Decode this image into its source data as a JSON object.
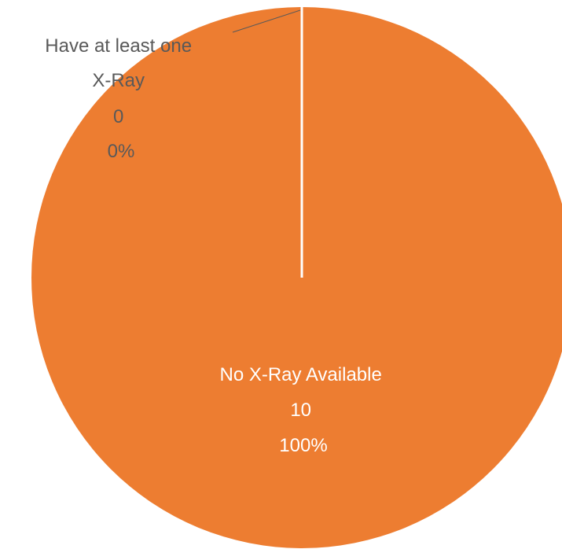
{
  "chart_data": {
    "type": "pie",
    "title": "",
    "slices": [
      {
        "label": "Have at least one X-Ray",
        "label_lines": [
          "Have at least one",
          "X-Ray"
        ],
        "value": 0,
        "value_text": "0",
        "percent_text": "0%",
        "color": "#ED7D31",
        "label_color": "#595959"
      },
      {
        "label": "No X-Ray Available",
        "label_lines": [
          "No X-Ray Available"
        ],
        "value": 10,
        "value_text": "10",
        "percent_text": "100%",
        "color": "#ED7D31",
        "label_color": "#ffffff"
      }
    ],
    "start_angle_deg": 0,
    "direction": "clockwise",
    "slice_border_color": "#ffffff",
    "leader_line_color": "#595959",
    "legend": "none"
  }
}
